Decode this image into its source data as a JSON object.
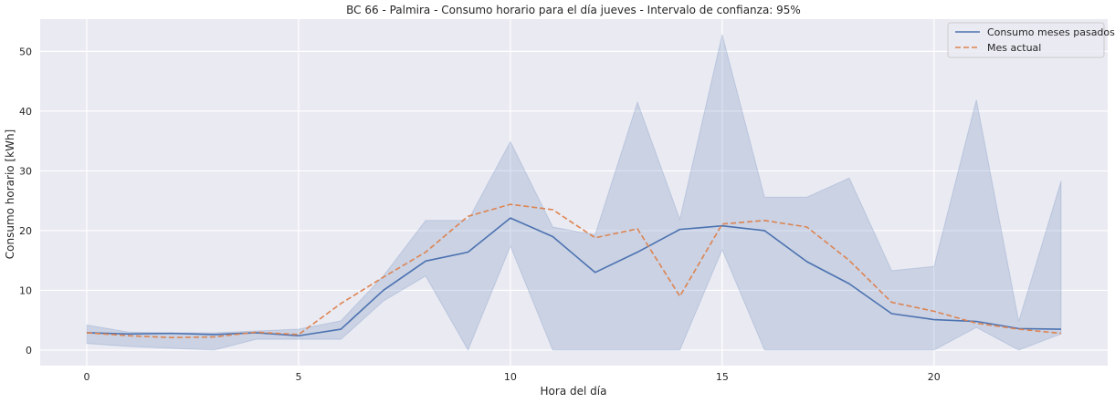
{
  "chart_data": {
    "type": "line",
    "title": "BC 66 - Palmira - Consumo horario para el día jueves - Intervalo de confianza: 95%",
    "xlabel": "Hora del día",
    "ylabel": "Consumo horario [kWh]",
    "xlim": [
      -1.1,
      24.1
    ],
    "ylim": [
      -2.6,
      55.4
    ],
    "xticks": [
      0,
      5,
      10,
      15,
      20
    ],
    "yticks": [
      0,
      10,
      20,
      30,
      40,
      50
    ],
    "grid": true,
    "legend_position": "top-right",
    "x": [
      0,
      1,
      2,
      3,
      4,
      5,
      6,
      7,
      8,
      9,
      10,
      11,
      12,
      13,
      14,
      15,
      16,
      17,
      18,
      19,
      20,
      21,
      22,
      23
    ],
    "series": [
      {
        "name": "Consumo meses pasados",
        "style": "solid",
        "color": "#4c72b0",
        "values": [
          2.9,
          2.7,
          2.8,
          2.6,
          2.9,
          2.4,
          3.5,
          10.0,
          14.9,
          16.4,
          22.1,
          19.0,
          13.0,
          16.4,
          20.2,
          20.8,
          20.0,
          14.8,
          11.1,
          6.1,
          5.1,
          4.8,
          3.6,
          3.5
        ],
        "ci_lower": [
          1.1,
          0.6,
          0.3,
          0.0,
          1.8,
          1.8,
          1.8,
          8.2,
          12.4,
          0.0,
          17.4,
          0.0,
          0.0,
          0.0,
          0.0,
          16.8,
          0.0,
          0.0,
          0.0,
          0.0,
          0.0,
          3.8,
          0.0,
          2.7
        ],
        "ci_upper": [
          4.2,
          3.0,
          2.9,
          2.9,
          3.2,
          3.5,
          4.9,
          12.4,
          21.7,
          21.7,
          34.9,
          20.6,
          19.3,
          41.5,
          21.9,
          52.8,
          25.6,
          25.6,
          28.8,
          13.3,
          14.0,
          41.9,
          4.8,
          28.3
        ],
        "ci_color": "#4c72b0"
      },
      {
        "name": "Mes actual",
        "style": "dashed",
        "color": "#dd8452",
        "values": [
          2.9,
          2.4,
          2.1,
          2.2,
          3.0,
          2.6,
          7.8,
          12.2,
          16.4,
          22.4,
          24.4,
          23.5,
          18.8,
          20.3,
          9.0,
          21.1,
          21.7,
          20.6,
          15.0,
          8.0,
          6.5,
          4.5,
          3.5,
          2.8
        ]
      }
    ]
  }
}
